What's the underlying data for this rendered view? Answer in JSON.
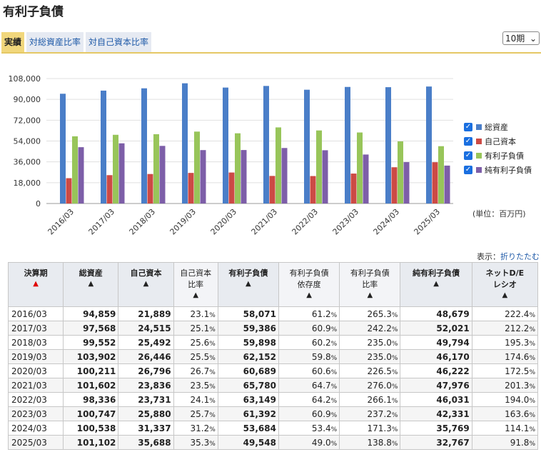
{
  "page_title": "有利子負債",
  "tabs": [
    {
      "label": "実績",
      "active": true
    },
    {
      "label": "対総資産比率",
      "active": false
    },
    {
      "label": "対自己資本比率",
      "active": false
    }
  ],
  "period_select": {
    "value": "10期"
  },
  "unit_label": "(単位：百万円)",
  "display_toggle": {
    "prefix": "表示：",
    "link": "折りたたむ"
  },
  "colors": {
    "total_assets": "#4a7ec8",
    "equity": "#cc4a45",
    "debt": "#98c55a",
    "net_debt": "#7d5ea8"
  },
  "chart_data": {
    "type": "bar",
    "categories": [
      "2016/03",
      "2017/03",
      "2018/03",
      "2019/03",
      "2020/03",
      "2021/03",
      "2022/03",
      "2023/03",
      "2024/03",
      "2025/03"
    ],
    "series": [
      {
        "name": "総資産",
        "values": [
          94859,
          97568,
          99552,
          103902,
          100211,
          101602,
          98336,
          100747,
          100538,
          101102
        ]
      },
      {
        "name": "自己資本",
        "values": [
          21889,
          24515,
          25492,
          26446,
          26796,
          23836,
          23731,
          25880,
          31337,
          35688
        ]
      },
      {
        "name": "有利子負債",
        "values": [
          58071,
          59386,
          59898,
          62152,
          60689,
          65780,
          63149,
          61392,
          53684,
          49548
        ]
      },
      {
        "name": "純有利子負債",
        "values": [
          48679,
          52021,
          49794,
          46170,
          46222,
          47976,
          46031,
          42331,
          35769,
          32767
        ]
      }
    ],
    "yticks": [
      "108,000",
      "90,000",
      "72,000",
      "54,000",
      "36,000",
      "18,000",
      "0"
    ],
    "ylim": [
      0,
      108000
    ],
    "grid": true,
    "legend": "right"
  },
  "table": {
    "headers": [
      {
        "label": "決算期",
        "arrow": "▲"
      },
      {
        "label": "総資産",
        "arrow": "▲"
      },
      {
        "label": "自己資本",
        "arrow": "▲"
      },
      {
        "label": "自己資本\n比率",
        "arrow": "▲"
      },
      {
        "label": "有利子負債",
        "arrow": "▲"
      },
      {
        "label": "有利子負債\n依存度",
        "arrow": "▲"
      },
      {
        "label": "有利子負債\n比率",
        "arrow": "▲"
      },
      {
        "label": "純有利子負債",
        "arrow": "▲"
      },
      {
        "label": "ネットD/E\nレシオ",
        "arrow": "▲"
      }
    ],
    "rows": [
      [
        "2016/03",
        "94,859",
        "21,889",
        "23.1",
        "58,071",
        "61.2",
        "265.3",
        "48,679",
        "222.4"
      ],
      [
        "2017/03",
        "97,568",
        "24,515",
        "25.1",
        "59,386",
        "60.9",
        "242.2",
        "52,021",
        "212.2"
      ],
      [
        "2018/03",
        "99,552",
        "25,492",
        "25.6",
        "59,898",
        "60.2",
        "235.0",
        "49,794",
        "195.3"
      ],
      [
        "2019/03",
        "103,902",
        "26,446",
        "25.5",
        "62,152",
        "59.8",
        "235.0",
        "46,170",
        "174.6"
      ],
      [
        "2020/03",
        "100,211",
        "26,796",
        "26.7",
        "60,689",
        "60.6",
        "226.5",
        "46,222",
        "172.5"
      ],
      [
        "2021/03",
        "101,602",
        "23,836",
        "23.5",
        "65,780",
        "64.7",
        "276.0",
        "47,976",
        "201.3"
      ],
      [
        "2022/03",
        "98,336",
        "23,731",
        "24.1",
        "63,149",
        "64.2",
        "266.1",
        "46,031",
        "194.0"
      ],
      [
        "2023/03",
        "100,747",
        "25,880",
        "25.7",
        "61,392",
        "60.9",
        "237.2",
        "42,331",
        "163.6"
      ],
      [
        "2024/03",
        "100,538",
        "31,337",
        "31.2",
        "53,684",
        "53.4",
        "171.3",
        "35,769",
        "114.1"
      ],
      [
        "2025/03",
        "101,102",
        "35,688",
        "35.3",
        "49,548",
        "49.0",
        "138.8",
        "32,767",
        "91.8"
      ]
    ],
    "pct_suffix": "%"
  }
}
